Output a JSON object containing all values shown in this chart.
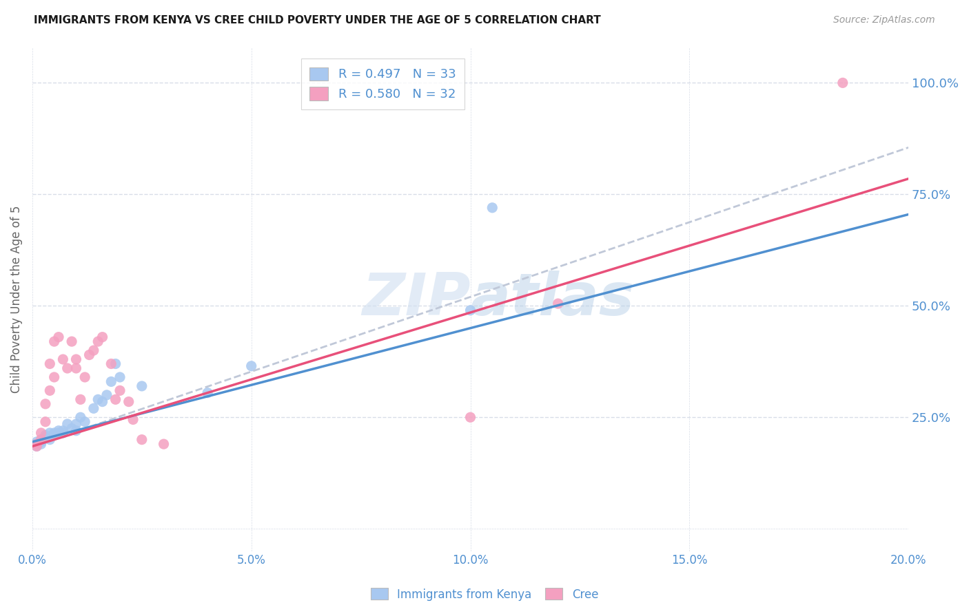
{
  "title": "IMMIGRANTS FROM KENYA VS CREE CHILD POVERTY UNDER THE AGE OF 5 CORRELATION CHART",
  "source": "Source: ZipAtlas.com",
  "xlabel": "",
  "ylabel": "Child Poverty Under the Age of 5",
  "xlim": [
    0.0,
    0.2
  ],
  "ylim": [
    -0.05,
    1.08
  ],
  "xtick_labels": [
    "0.0%",
    "5.0%",
    "10.0%",
    "15.0%",
    "20.0%"
  ],
  "xtick_vals": [
    0.0,
    0.05,
    0.1,
    0.15,
    0.2
  ],
  "ytick_labels": [
    "25.0%",
    "50.0%",
    "75.0%",
    "100.0%"
  ],
  "ytick_vals": [
    0.25,
    0.5,
    0.75,
    1.0
  ],
  "r_kenya": 0.497,
  "n_kenya": 33,
  "r_cree": 0.58,
  "n_cree": 32,
  "color_kenya": "#a8c8f0",
  "color_cree": "#f4a0c0",
  "color_kenya_line": "#5090d0",
  "color_cree_line": "#e8507a",
  "color_dashed_line": "#c0c8d8",
  "background_color": "#ffffff",
  "grid_color": "#d8dde8",
  "axis_label_color": "#5090d0",
  "watermark_color": "#d0dff0",
  "kenya_intercept": 0.195,
  "kenya_slope": 2.55,
  "cree_intercept": 0.185,
  "cree_slope": 3.0,
  "dash_intercept": 0.185,
  "dash_slope": 3.35,
  "kenya_x": [
    0.001,
    0.001,
    0.002,
    0.002,
    0.002,
    0.003,
    0.003,
    0.004,
    0.004,
    0.005,
    0.005,
    0.006,
    0.006,
    0.007,
    0.007,
    0.008,
    0.009,
    0.01,
    0.01,
    0.011,
    0.012,
    0.014,
    0.015,
    0.016,
    0.017,
    0.018,
    0.019,
    0.02,
    0.025,
    0.04,
    0.05,
    0.1,
    0.105
  ],
  "kenya_y": [
    0.195,
    0.185,
    0.2,
    0.195,
    0.19,
    0.21,
    0.205,
    0.215,
    0.2,
    0.215,
    0.21,
    0.215,
    0.22,
    0.215,
    0.22,
    0.235,
    0.225,
    0.235,
    0.22,
    0.25,
    0.24,
    0.27,
    0.29,
    0.285,
    0.3,
    0.33,
    0.37,
    0.34,
    0.32,
    0.305,
    0.365,
    0.49,
    0.72
  ],
  "cree_x": [
    0.001,
    0.001,
    0.002,
    0.002,
    0.003,
    0.003,
    0.004,
    0.004,
    0.005,
    0.005,
    0.006,
    0.007,
    0.008,
    0.009,
    0.01,
    0.01,
    0.011,
    0.012,
    0.013,
    0.014,
    0.015,
    0.016,
    0.018,
    0.019,
    0.02,
    0.022,
    0.023,
    0.025,
    0.03,
    0.1,
    0.12,
    0.185
  ],
  "cree_y": [
    0.19,
    0.185,
    0.2,
    0.215,
    0.24,
    0.28,
    0.31,
    0.37,
    0.34,
    0.42,
    0.43,
    0.38,
    0.36,
    0.42,
    0.38,
    0.36,
    0.29,
    0.34,
    0.39,
    0.4,
    0.42,
    0.43,
    0.37,
    0.29,
    0.31,
    0.285,
    0.245,
    0.2,
    0.19,
    0.25,
    0.505,
    1.0
  ]
}
